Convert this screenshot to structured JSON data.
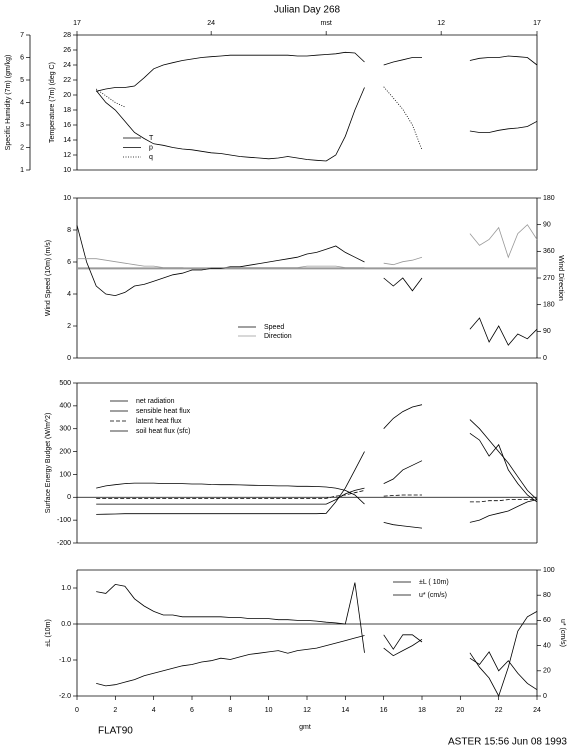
{
  "chart_data": [
    {
      "type": "line",
      "title": "Julian Day 268",
      "ylabel": "Temperature (7m) (deg C)",
      "y2label": "Specific Humidity (7m) (gm/kg)",
      "y2_side": "left",
      "xlim": [
        0,
        24
      ],
      "top_ticks": [
        {
          "value": 0,
          "label": "17"
        },
        {
          "value": 7,
          "label": "24"
        },
        {
          "value": 13,
          "label": "mst"
        },
        {
          "value": 19,
          "label": "12"
        },
        {
          "value": 24,
          "label": "17"
        }
      ],
      "ylim": [
        10,
        28
      ],
      "yticks": [
        10,
        12,
        14,
        16,
        18,
        20,
        22,
        24,
        26,
        28
      ],
      "y2lim": [
        1,
        7
      ],
      "y2ticks": [
        1,
        2,
        3,
        4,
        5,
        6,
        7
      ],
      "x": [
        1,
        1.5,
        2,
        2.5,
        3,
        3.5,
        4,
        4.5,
        5,
        5.5,
        6,
        6.5,
        7,
        7.5,
        8,
        8.5,
        9,
        9.5,
        10,
        10.5,
        11,
        11.5,
        12,
        12.5,
        13,
        13.5,
        14,
        14.5,
        15,
        15.5,
        16,
        16.5,
        17,
        17.5,
        18,
        18.5,
        19,
        19.5,
        20,
        20.5,
        21,
        21.5,
        22,
        22.5,
        23,
        23.5,
        24
      ],
      "series": [
        {
          "name": "T",
          "color": "#000000",
          "values": [
            20.5,
            20.8,
            21.0,
            21.0,
            21.2,
            22.3,
            23.5,
            24.0,
            24.3,
            24.6,
            24.8,
            25.0,
            25.1,
            25.2,
            25.3,
            25.3,
            25.3,
            25.3,
            25.3,
            25.3,
            25.3,
            25.2,
            25.2,
            25.3,
            25.4,
            25.5,
            25.7,
            25.6,
            24.4,
            null,
            24.0,
            24.4,
            24.7,
            25.0,
            25.0,
            null,
            null,
            null,
            null,
            24.6,
            24.9,
            25.0,
            25.0,
            25.2,
            25.1,
            25.0,
            24.0
          ]
        },
        {
          "name": "p",
          "color": "#000000",
          "values": [
            20.6,
            19.0,
            18.0,
            16.5,
            15.0,
            14.2,
            13.5,
            13.3,
            13.0,
            12.8,
            12.7,
            12.5,
            12.3,
            12.2,
            12.0,
            11.8,
            11.7,
            11.6,
            11.5,
            11.6,
            11.8,
            11.6,
            11.4,
            11.3,
            11.2,
            12.0,
            14.5,
            18.0,
            21.0,
            null,
            null,
            null,
            null,
            null,
            null,
            null,
            null,
            null,
            null,
            15.2,
            15.0,
            15.0,
            15.3,
            15.5,
            15.6,
            15.8,
            16.5
          ]
        },
        {
          "name": "q",
          "color": "#000000",
          "dash": "dotted",
          "axis": "y2",
          "values": [
            4.6,
            4.3,
            4.0,
            3.8,
            null,
            null,
            null,
            null,
            null,
            null,
            null,
            null,
            null,
            null,
            null,
            null,
            null,
            null,
            null,
            null,
            null,
            null,
            null,
            null,
            null,
            null,
            null,
            null,
            null,
            null,
            4.7,
            4.2,
            3.7,
            3.0,
            1.9,
            null,
            null,
            null,
            null,
            null,
            null,
            null,
            null,
            null,
            null,
            null,
            null
          ]
        }
      ]
    },
    {
      "type": "line",
      "ylabel": "Wind Speed (10m) (m/s)",
      "y2label": "Wind Direction",
      "y2_side": "right",
      "xlim": [
        0,
        24
      ],
      "ylim": [
        0,
        10
      ],
      "yticks": [
        0,
        2,
        4,
        6,
        8,
        10
      ],
      "y2lim": [
        0,
        540
      ],
      "y2ticks": [
        0,
        90,
        180,
        270,
        360,
        {
          "value": 450,
          "label": "90"
        },
        {
          "value": 540,
          "label": "180"
        }
      ],
      "hline": 5.6,
      "hline_color": "#999999",
      "x": [
        0,
        0.5,
        1,
        1.5,
        2,
        2.5,
        3,
        3.5,
        4,
        4.5,
        5,
        5.5,
        6,
        6.5,
        7,
        7.5,
        8,
        8.5,
        9,
        9.5,
        10,
        10.5,
        11,
        11.5,
        12,
        12.5,
        13,
        13.5,
        14,
        14.5,
        15,
        15.5,
        16,
        16.5,
        17,
        17.5,
        18,
        18.5,
        19,
        19.5,
        20,
        20.5,
        21,
        21.5,
        22,
        22.5,
        23,
        23.5,
        24
      ],
      "series": [
        {
          "name": "Speed",
          "color": "#000000",
          "values": [
            8.3,
            6.0,
            4.5,
            4.0,
            3.9,
            4.1,
            4.5,
            4.6,
            4.8,
            5.0,
            5.2,
            5.3,
            5.5,
            5.5,
            5.6,
            5.6,
            5.7,
            5.7,
            5.8,
            5.9,
            6.0,
            6.1,
            6.2,
            6.3,
            6.5,
            6.6,
            6.8,
            7.0,
            6.6,
            6.3,
            6.0,
            null,
            5.0,
            4.5,
            5.0,
            4.2,
            5.0,
            null,
            null,
            null,
            null,
            1.8,
            2.5,
            1.0,
            2.0,
            0.8,
            1.5,
            1.2,
            1.8
          ]
        },
        {
          "name": "Direction",
          "color": "#999999",
          "axis": "y2",
          "values": [
            335,
            335,
            335,
            330,
            325,
            320,
            315,
            310,
            310,
            305,
            305,
            305,
            300,
            300,
            305,
            305,
            305,
            305,
            305,
            305,
            305,
            305,
            305,
            305,
            310,
            310,
            310,
            310,
            305,
            305,
            305,
            null,
            320,
            315,
            325,
            330,
            340,
            null,
            null,
            null,
            null,
            420,
            380,
            400,
            440,
            340,
            420,
            450,
            400
          ]
        }
      ]
    },
    {
      "type": "line",
      "ylabel": "Surface Energy Budget (W/m^2)",
      "xlim": [
        0,
        24
      ],
      "ylim": [
        -200,
        500
      ],
      "yticks": [
        -200,
        -100,
        0,
        100,
        200,
        300,
        400,
        500
      ],
      "hline": 0,
      "hline_color": "#000000",
      "x": [
        1,
        1.5,
        2,
        2.5,
        3,
        3.5,
        4,
        4.5,
        5,
        5.5,
        6,
        6.5,
        7,
        7.5,
        8,
        8.5,
        9,
        9.5,
        10,
        10.5,
        11,
        11.5,
        12,
        12.5,
        13,
        13.5,
        14,
        14.5,
        15,
        15.5,
        16,
        16.5,
        17,
        17.5,
        18,
        18.5,
        19,
        19.5,
        20,
        20.5,
        21,
        21.5,
        22,
        22.5,
        23,
        23.5,
        24
      ],
      "series": [
        {
          "name": "net radiation",
          "color": "#000000",
          "values": [
            -75,
            -74,
            -73,
            -72,
            -72,
            -72,
            -72,
            -72,
            -72,
            -72,
            -72,
            -72,
            -72,
            -72,
            -72,
            -72,
            -72,
            -72,
            -72,
            -72,
            -72,
            -72,
            -72,
            -72,
            -70,
            -20,
            40,
            120,
            200,
            null,
            300,
            345,
            375,
            395,
            405,
            null,
            null,
            null,
            null,
            340,
            300,
            250,
            200,
            150,
            90,
            30,
            -10
          ]
        },
        {
          "name": "sensible heat flux",
          "color": "#000000",
          "values": [
            -30,
            -30,
            -30,
            -30,
            -30,
            -30,
            -30,
            -30,
            -30,
            -30,
            -30,
            -30,
            -30,
            -30,
            -30,
            -30,
            -30,
            -30,
            -30,
            -30,
            -30,
            -30,
            -30,
            -30,
            -30,
            -10,
            15,
            30,
            40,
            null,
            60,
            80,
            120,
            140,
            160,
            null,
            null,
            null,
            null,
            280,
            250,
            180,
            230,
            120,
            60,
            10,
            -20
          ]
        },
        {
          "name": "latent heat flux",
          "color": "#000000",
          "dash": "dashed",
          "values": [
            -5,
            -5,
            -5,
            -5,
            -5,
            -5,
            -5,
            -5,
            -5,
            -5,
            -5,
            -5,
            -5,
            -5,
            -5,
            -5,
            -5,
            -5,
            -5,
            -5,
            -5,
            -5,
            -5,
            -5,
            -5,
            5,
            10,
            20,
            30,
            null,
            5,
            8,
            10,
            10,
            10,
            null,
            null,
            null,
            null,
            -20,
            -20,
            -15,
            -15,
            -10,
            -10,
            -10,
            -10
          ]
        },
        {
          "name": "soil heat flux (sfc)",
          "color": "#000000",
          "values": [
            40,
            50,
            55,
            60,
            62,
            62,
            62,
            60,
            60,
            60,
            58,
            58,
            56,
            55,
            55,
            54,
            53,
            52,
            51,
            50,
            50,
            48,
            48,
            47,
            45,
            40,
            30,
            10,
            -30,
            null,
            -110,
            -120,
            -125,
            -130,
            -135,
            null,
            null,
            null,
            null,
            -110,
            -100,
            -80,
            -70,
            -60,
            -40,
            -20,
            -10
          ]
        }
      ]
    },
    {
      "type": "line",
      "ylabel": "±L (10m)",
      "y2label": "u* (cm/s)",
      "y2_side": "right",
      "xlabel": "gmt",
      "xlim": [
        0,
        24
      ],
      "xticks": [
        0,
        2,
        4,
        6,
        8,
        10,
        12,
        14,
        16,
        18,
        20,
        22,
        24
      ],
      "ylim": [
        -2,
        1.5
      ],
      "yticks": [
        {
          "value": -2,
          "label": "-2.0"
        },
        {
          "value": -1,
          "label": "-1.0"
        },
        {
          "value": 0,
          "label": "0.0"
        },
        {
          "value": 1,
          "label": "1.0"
        }
      ],
      "y2lim": [
        0,
        100
      ],
      "y2ticks": [
        0,
        20,
        40,
        60,
        80,
        100
      ],
      "hline": 0,
      "hline_color": "#000000",
      "x": [
        1,
        1.5,
        2,
        2.5,
        3,
        3.5,
        4,
        4.5,
        5,
        5.5,
        6,
        6.5,
        7,
        7.5,
        8,
        8.5,
        9,
        9.5,
        10,
        10.5,
        11,
        11.5,
        12,
        12.5,
        13,
        13.5,
        14,
        14.5,
        15,
        15.5,
        16,
        16.5,
        17,
        17.5,
        18,
        18.5,
        19,
        19.5,
        20,
        20.5,
        21,
        21.5,
        22,
        22.5,
        23,
        23.5,
        24
      ],
      "series": [
        {
          "name": "±L ( 10m)",
          "color": "#000000",
          "values": [
            0.9,
            0.85,
            1.1,
            1.05,
            0.7,
            0.5,
            0.35,
            0.25,
            0.25,
            0.2,
            0.2,
            0.2,
            0.2,
            0.2,
            0.18,
            0.18,
            0.15,
            0.15,
            0.15,
            0.12,
            0.12,
            0.1,
            0.1,
            0.08,
            0.05,
            0.03,
            0.0,
            1.15,
            -0.8,
            null,
            -0.3,
            -0.7,
            -0.3,
            -0.3,
            -0.5,
            null,
            null,
            null,
            null,
            -0.8,
            -1.2,
            -1.5,
            -2.0,
            -1.2,
            -0.2,
            0.2,
            0.35
          ]
        },
        {
          "name": "u* (cm/s)",
          "color": "#000000",
          "axis": "y2",
          "values": [
            10,
            8,
            9,
            11,
            13,
            16,
            18,
            20,
            22,
            24,
            25,
            27,
            28,
            30,
            29,
            31,
            33,
            34,
            35,
            36,
            34,
            36,
            37,
            38,
            40,
            42,
            44,
            46,
            48,
            null,
            38,
            32,
            36,
            40,
            45,
            null,
            null,
            null,
            null,
            30,
            25,
            35,
            20,
            28,
            18,
            10,
            5
          ]
        }
      ]
    }
  ],
  "footer": {
    "left": "FLAT90",
    "right": "ASTER 15:56 Jun 08 1993"
  }
}
